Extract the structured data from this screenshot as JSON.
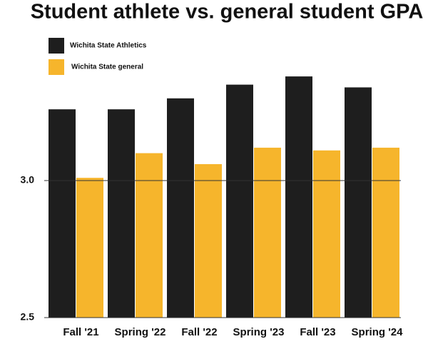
{
  "chart_data": {
    "type": "bar",
    "title": "Student athlete vs. general student GPA",
    "categories": [
      "Fall '21",
      "Spring '22",
      "Fall '22",
      "Spring '23",
      "Fall '23",
      "Spring '24"
    ],
    "series": [
      {
        "name": "Wichita State Athletics",
        "color": "#1e1e1e",
        "values": [
          3.26,
          3.26,
          3.3,
          3.35,
          3.38,
          3.34
        ]
      },
      {
        "name": "Wichita State general",
        "color": "#f6b52c",
        "values": [
          3.01,
          3.1,
          3.06,
          3.12,
          3.11,
          3.12
        ]
      }
    ],
    "ylim": [
      2.5,
      3.5
    ],
    "yticks": [
      2.5,
      {
        "value": 3,
        "label": "3.0"
      }
    ],
    "grid": true,
    "legend": "top-left"
  }
}
